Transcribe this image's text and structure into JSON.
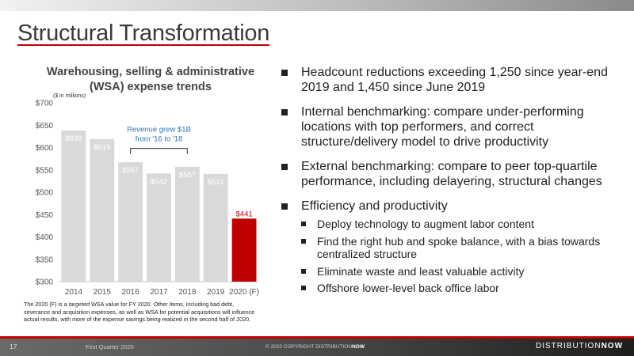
{
  "slide": {
    "title": "Structural Transformation",
    "page_number": "17",
    "footer_left": "First Quarter 2020",
    "copyright_prefix": "© 2020 COPYRIGHT DISTRIBUTION",
    "copyright_brand": "NOW",
    "logo_text_a": "DISTRIBUTION",
    "logo_text_b": "NOW"
  },
  "chart_data": {
    "type": "bar",
    "title": "Warehousing, selling & administrative (WSA) expense trends",
    "units_note": "($ in millions)",
    "categories": [
      "2014",
      "2015",
      "2016",
      "2017",
      "2018",
      "2019",
      "2020 (F)"
    ],
    "values": [
      638,
      619,
      567,
      542,
      557,
      541,
      441
    ],
    "data_labels": [
      "$638",
      "$619",
      "$567",
      "$542",
      "$557",
      "$541",
      "$441"
    ],
    "highlight_index": 6,
    "colors": {
      "bar": "#d9d9d9",
      "highlight": "#c00000",
      "label": "#ffffff",
      "highlight_label": "#c00000",
      "annotation": "#2e75b6"
    },
    "ylim": [
      300,
      700
    ],
    "y_ticks": [
      300,
      350,
      400,
      450,
      500,
      550,
      600,
      650,
      700
    ],
    "y_tick_labels": [
      "$300",
      "$350",
      "$400",
      "$450",
      "$500",
      "$550",
      "$600",
      "$650",
      "$700"
    ],
    "grid": false,
    "annotation": {
      "line1": "Revenue grew $1B",
      "line2": "from '16 to '18",
      "from_category": "2016",
      "to_category": "2018"
    }
  },
  "footnote": {
    "prefix": "The 2020 (F) is a ",
    "emphasis": "targeted",
    "rest": " WSA value for FY 2020. Other items, including bad debt, severance and acquisition expenses, as well as WSA for potential acquisitions will influence actual results, with more of the expense savings being realized in the second half of 2020."
  },
  "bullets": [
    {
      "text": "Headcount reductions exceeding 1,250 since year-end 2019 and 1,450 since June 2019",
      "sub": []
    },
    {
      "text": "Internal benchmarking: compare under-performing locations with top performers, and correct structure/delivery model to drive productivity",
      "sub": []
    },
    {
      "text": "External benchmarking: compare to peer top-quartile performance, including delayering, structural changes",
      "sub": []
    },
    {
      "text": "Efficiency and productivity",
      "sub": [
        "Deploy technology to augment labor content",
        "Find the right hub and spoke balance, with a bias towards centralized structure",
        "Eliminate waste and least valuable activity",
        "Offshore lower-level back office labor"
      ]
    }
  ]
}
